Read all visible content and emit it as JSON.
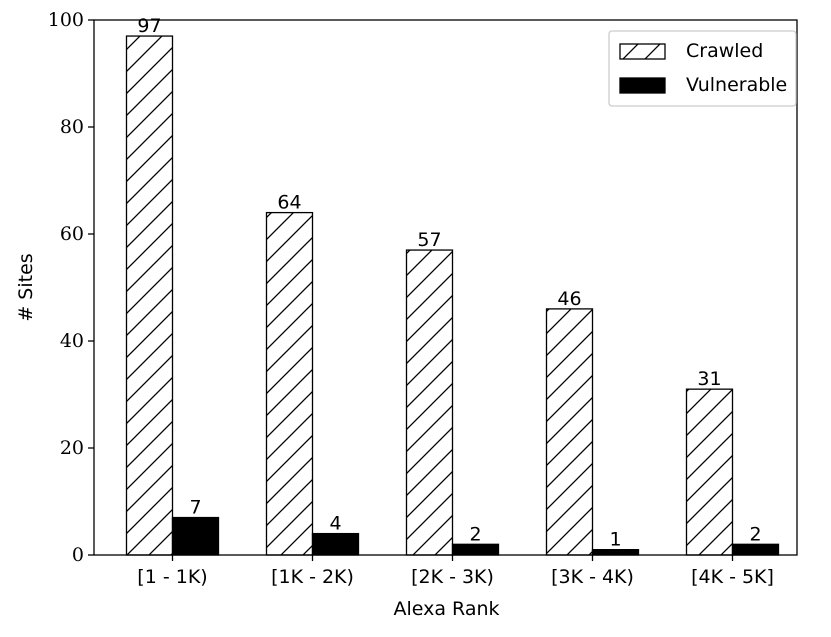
{
  "chart_data": {
    "type": "bar",
    "categories": [
      "[1 - 1K)",
      "[1K - 2K)",
      "[2K - 3K)",
      "[3K - 4K)",
      "[4K - 5K]"
    ],
    "series": [
      {
        "name": "Crawled",
        "values": [
          97,
          64,
          57,
          46,
          31
        ],
        "pattern": "diagonal-hatch",
        "color": "#ffffff"
      },
      {
        "name": "Vulnerable",
        "values": [
          7,
          4,
          2,
          1,
          2
        ],
        "pattern": "solid",
        "color": "#000000"
      }
    ],
    "xlabel": "Alexa Rank",
    "ylabel": "# Sites",
    "ylim": [
      0,
      100
    ],
    "yticks": [
      0,
      20,
      40,
      60,
      80,
      100
    ],
    "grid": false,
    "legend_position": "top-right",
    "data_labels": true
  }
}
